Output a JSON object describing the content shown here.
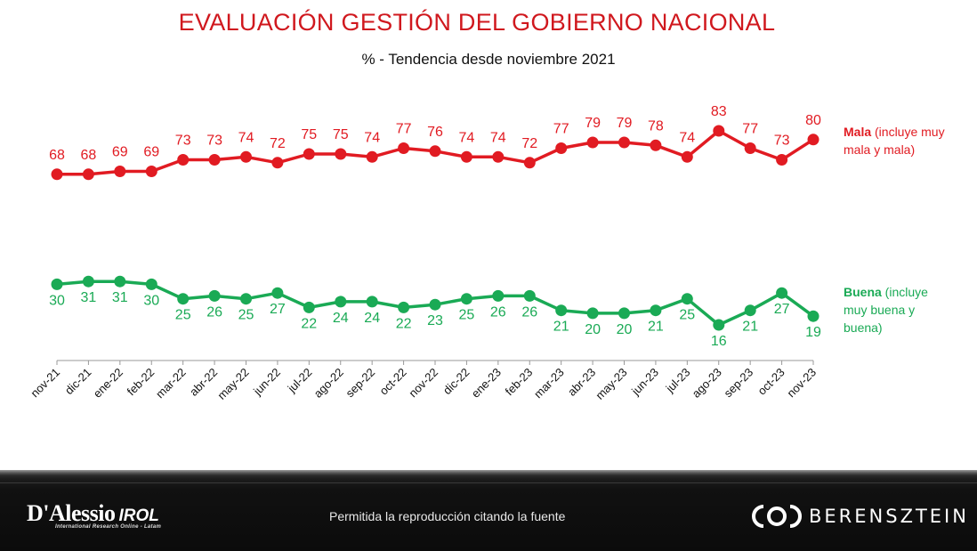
{
  "header": {
    "title": "EVALUACIÓN GESTIÓN DEL GOBIERNO NACIONAL",
    "subtitle": "% - Tendencia desde noviembre 2021"
  },
  "legend": {
    "mala_bold": "Mala",
    "mala_rest": " (incluye muy mala y mala)",
    "buena_bold": "Buena",
    "buena_rest": " (incluye muy buena y buena)"
  },
  "footer": {
    "note": "Permitida la reproducción citando la fuente",
    "logo_left_main": "D'Alessio",
    "logo_left_accent": "IROL",
    "logo_left_sub": "International Research Online - Latam",
    "logo_right": "BERENSZTEIN"
  },
  "colors": {
    "mala": "#e11b22",
    "buena": "#1aaa55",
    "title": "#d0181e"
  },
  "chart_data": {
    "type": "line",
    "title": "EVALUACIÓN GESTIÓN DEL GOBIERNO NACIONAL",
    "subtitle": "% - Tendencia desde noviembre 2021",
    "xlabel": "",
    "ylabel": "",
    "ylim": [
      0,
      100
    ],
    "categories": [
      "nov-21",
      "dic-21",
      "ene-22",
      "feb-22",
      "mar-22",
      "abr-22",
      "may-22",
      "jun-22",
      "jul-22",
      "ago-22",
      "sep-22",
      "oct-22",
      "nov-22",
      "dic-22",
      "ene-23",
      "feb-23",
      "mar-23",
      "abr-23",
      "may-23",
      "jun-23",
      "jul-23",
      "ago-23",
      "sep-23",
      "oct-23",
      "nov-23"
    ],
    "series": [
      {
        "name": "Mala (incluye muy mala y mala)",
        "color": "#e11b22",
        "values": [
          68,
          68,
          69,
          69,
          73,
          73,
          74,
          72,
          75,
          75,
          74,
          77,
          76,
          74,
          74,
          72,
          77,
          79,
          79,
          78,
          74,
          83,
          77,
          73,
          80
        ]
      },
      {
        "name": "Buena (incluye muy buena y buena)",
        "color": "#1aaa55",
        "values": [
          30,
          31,
          31,
          30,
          25,
          26,
          25,
          27,
          22,
          24,
          24,
          22,
          23,
          25,
          26,
          26,
          21,
          20,
          20,
          21,
          25,
          16,
          21,
          27,
          19
        ]
      }
    ],
    "legend_position": "right",
    "grid": false
  }
}
